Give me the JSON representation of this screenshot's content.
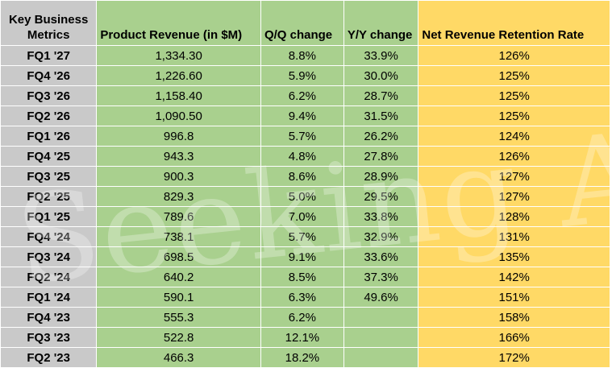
{
  "chart_data": {
    "type": "table",
    "columns": [
      "Key Business Metrics",
      "Product Revenue (in $M)",
      "Q/Q change",
      "Y/Y change",
      "Net Revenue Retention Rate"
    ],
    "rows": [
      {
        "quarter": "FQ1 '27",
        "product_revenue": "1,334.30",
        "qq_change": "8.8%",
        "yy_change": "33.9%",
        "nrr": "126%"
      },
      {
        "quarter": "FQ4 '26",
        "product_revenue": "1,226.60",
        "qq_change": "5.9%",
        "yy_change": "30.0%",
        "nrr": "125%"
      },
      {
        "quarter": "FQ3 '26",
        "product_revenue": "1,158.40",
        "qq_change": "6.2%",
        "yy_change": "28.7%",
        "nrr": "125%"
      },
      {
        "quarter": "FQ2 '26",
        "product_revenue": "1,090.50",
        "qq_change": "9.4%",
        "yy_change": "31.5%",
        "nrr": "125%"
      },
      {
        "quarter": "FQ1 '26",
        "product_revenue": "996.8",
        "qq_change": "5.7%",
        "yy_change": "26.2%",
        "nrr": "124%"
      },
      {
        "quarter": "FQ4 '25",
        "product_revenue": "943.3",
        "qq_change": "4.8%",
        "yy_change": "27.8%",
        "nrr": "126%"
      },
      {
        "quarter": "FQ3 '25",
        "product_revenue": "900.3",
        "qq_change": "8.6%",
        "yy_change": "28.9%",
        "nrr": "127%"
      },
      {
        "quarter": "FQ2 '25",
        "product_revenue": "829.3",
        "qq_change": "5.0%",
        "yy_change": "29.5%",
        "nrr": "127%"
      },
      {
        "quarter": "FQ1 '25",
        "product_revenue": "789.6",
        "qq_change": "7.0%",
        "yy_change": "33.8%",
        "nrr": "128%"
      },
      {
        "quarter": "FQ4 '24",
        "product_revenue": "738.1",
        "qq_change": "5.7%",
        "yy_change": "32.9%",
        "nrr": "131%"
      },
      {
        "quarter": "FQ3 '24",
        "product_revenue": "698.5",
        "qq_change": "9.1%",
        "yy_change": "33.6%",
        "nrr": "135%"
      },
      {
        "quarter": "FQ2 '24",
        "product_revenue": "640.2",
        "qq_change": "8.5%",
        "yy_change": "37.3%",
        "nrr": "142%"
      },
      {
        "quarter": "FQ1 '24",
        "product_revenue": "590.1",
        "qq_change": "6.3%",
        "yy_change": "49.6%",
        "nrr": "151%"
      },
      {
        "quarter": "FQ4 '23",
        "product_revenue": "555.3",
        "qq_change": "6.2%",
        "yy_change": "",
        "nrr": "158%"
      },
      {
        "quarter": "FQ3 '23",
        "product_revenue": "522.8",
        "qq_change": "12.1%",
        "yy_change": "",
        "nrr": "166%"
      },
      {
        "quarter": "FQ2 '23",
        "product_revenue": "466.3",
        "qq_change": "18.2%",
        "yy_change": "",
        "nrr": "172%"
      }
    ]
  },
  "colors": {
    "label_column": "#c9c9c9",
    "green_columns": "#a9d08e",
    "yellow_column": "#ffd966"
  },
  "watermark": {
    "text": "Seeking Alphaα"
  }
}
